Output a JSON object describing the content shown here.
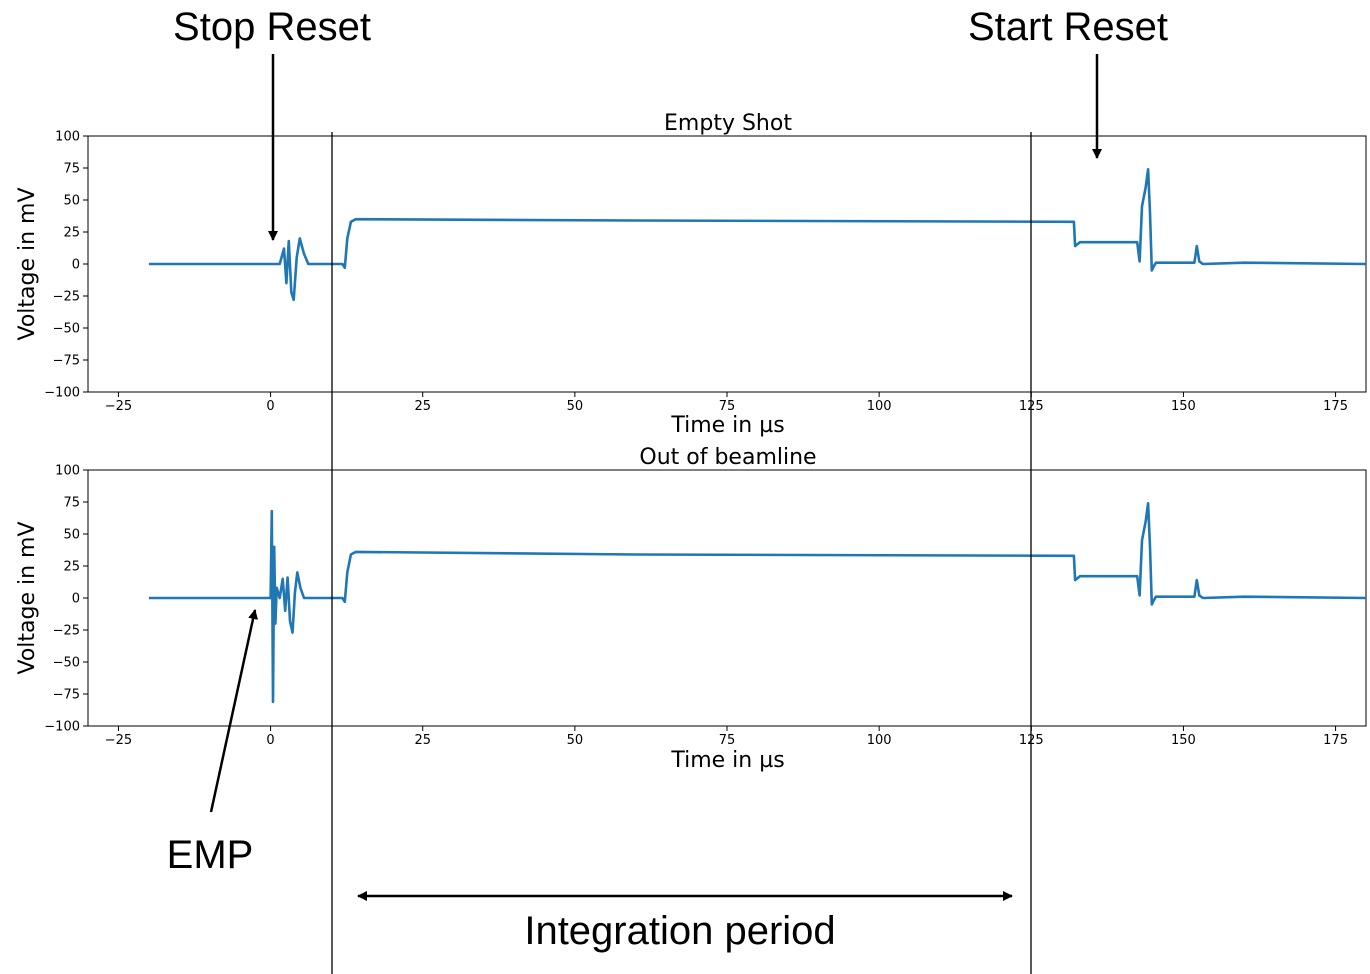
{
  "chart_data": [
    {
      "type": "line",
      "title": "Empty Shot",
      "xlabel": "Time in µs",
      "ylabel": "Voltage in mV",
      "xlim": [
        -30,
        180
      ],
      "ylim": [
        -100,
        100
      ],
      "xticks": [
        -25,
        0,
        25,
        50,
        75,
        100,
        125,
        150,
        175
      ],
      "yticks": [
        100,
        75,
        50,
        25,
        0,
        -25,
        -50,
        -75,
        -100
      ],
      "xtick_labels": [
        "−25",
        "0",
        "25",
        "50",
        "75",
        "100",
        "125",
        "150",
        "175"
      ],
      "ytick_labels": [
        "100",
        "75",
        "50",
        "25",
        "0",
        "−25",
        "−50",
        "−75",
        "−100"
      ],
      "color": "#1f77b4",
      "series": [
        {
          "x": [
            -20,
            1.5,
            2.2,
            2.6,
            3.0,
            3.4,
            3.8,
            4.3,
            4.8,
            5.5,
            6.2,
            7,
            11.8,
            12.2,
            12.6,
            13.2,
            14,
            60,
            132,
            132.2,
            133,
            142.4,
            142.8,
            143.2,
            143.8,
            144.2,
            144.5,
            144.8,
            145.1,
            145.5,
            150,
            151.8,
            152.2,
            152.6,
            153.2,
            160,
            180
          ],
          "y": [
            0,
            0,
            12,
            -15,
            18,
            -22,
            -28,
            5,
            20,
            8,
            0,
            0,
            0,
            -3,
            20,
            33,
            35,
            34,
            33,
            14,
            17,
            17,
            2,
            45,
            60,
            74,
            40,
            -5,
            -2,
            1,
            1,
            1,
            14,
            2,
            0,
            1,
            0
          ]
        }
      ]
    },
    {
      "type": "line",
      "title": "Out of beamline",
      "xlabel": "Time in µs",
      "ylabel": "Voltage in mV",
      "xlim": [
        -30,
        180
      ],
      "ylim": [
        -100,
        100
      ],
      "xticks": [
        -25,
        0,
        25,
        50,
        75,
        100,
        125,
        150,
        175
      ],
      "yticks": [
        100,
        75,
        50,
        25,
        0,
        -25,
        -50,
        -75,
        -100
      ],
      "xtick_labels": [
        "−25",
        "0",
        "25",
        "50",
        "75",
        "100",
        "125",
        "150",
        "175"
      ],
      "ytick_labels": [
        "100",
        "75",
        "50",
        "25",
        "0",
        "−25",
        "−50",
        "−75",
        "−100"
      ],
      "color": "#1f77b4",
      "series": [
        {
          "x": [
            -20,
            0,
            0.2,
            0.4,
            0.6,
            0.8,
            1.0,
            1.5,
            2.0,
            2.4,
            2.8,
            3.2,
            3.6,
            4.0,
            4.4,
            4.9,
            5.5,
            6.2,
            7,
            11.8,
            12.2,
            12.6,
            13.2,
            14,
            60,
            132,
            132.2,
            133,
            142.4,
            142.8,
            143.2,
            143.8,
            144.2,
            144.5,
            144.8,
            145.1,
            145.5,
            150,
            151.8,
            152.2,
            152.6,
            153.2,
            160,
            180
          ],
          "y": [
            0,
            0,
            68,
            -81,
            40,
            -20,
            8,
            0,
            15,
            -10,
            16,
            -18,
            -27,
            4,
            20,
            8,
            0,
            0,
            0,
            0,
            -3,
            20,
            34,
            36,
            34,
            33,
            14,
            17,
            17,
            2,
            45,
            60,
            74,
            40,
            -5,
            -2,
            1,
            1,
            1,
            14,
            2,
            0,
            1,
            0
          ]
        }
      ]
    }
  ],
  "annotations": {
    "stop_reset": "Stop Reset",
    "start_reset": "Start Reset",
    "emp": "EMP",
    "integration_period": "Integration period"
  }
}
